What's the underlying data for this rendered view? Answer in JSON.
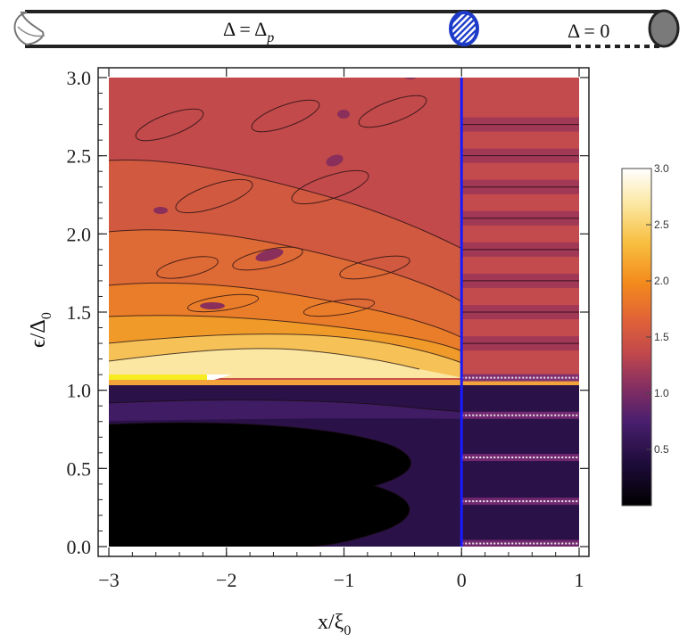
{
  "header": {
    "left_label": "Δ = Δp",
    "left_label_main": "Δ = Δ",
    "left_label_sub": "p",
    "right_label": "Δ = 0"
  },
  "chart_data": {
    "type": "heatmap",
    "title": "",
    "xlabel": "x/ξ0",
    "xlabel_main": "x/ξ",
    "xlabel_sub": "0",
    "ylabel": "ϵ/Δ0",
    "ylabel_main": "ϵ/Δ",
    "ylabel_sub": "0",
    "xlim": [
      -3,
      1
    ],
    "ylim": [
      0,
      3
    ],
    "x_ticks": [
      -3,
      -2,
      -1,
      0,
      1
    ],
    "x_tick_labels": [
      "−3",
      "−2",
      "−1",
      "0",
      "1"
    ],
    "y_ticks": [
      0.0,
      0.5,
      1.0,
      1.5,
      2.0,
      2.5,
      3.0
    ],
    "y_tick_labels": [
      "0.0",
      "0.5",
      "1.0",
      "1.5",
      "2.0",
      "2.5",
      "3.0"
    ],
    "interface_x": 0,
    "right_region_resonances": [
      0.02,
      0.29,
      0.57,
      0.84,
      1.08,
      1.3,
      1.5,
      1.7,
      1.9,
      2.1,
      2.3,
      2.5,
      2.7
    ],
    "colorbar": {
      "min": 0,
      "max": 3.0,
      "ticks": [
        0.5,
        1.0,
        1.5,
        2.0,
        2.5,
        3.0
      ],
      "tick_labels": [
        "0.5",
        "1.0",
        "1.5",
        "2.0",
        "2.5",
        "3.0"
      ]
    }
  },
  "colors": {
    "interface_line": "#1a1aff",
    "border_red": "#c74a4a",
    "frame": "#222222"
  }
}
